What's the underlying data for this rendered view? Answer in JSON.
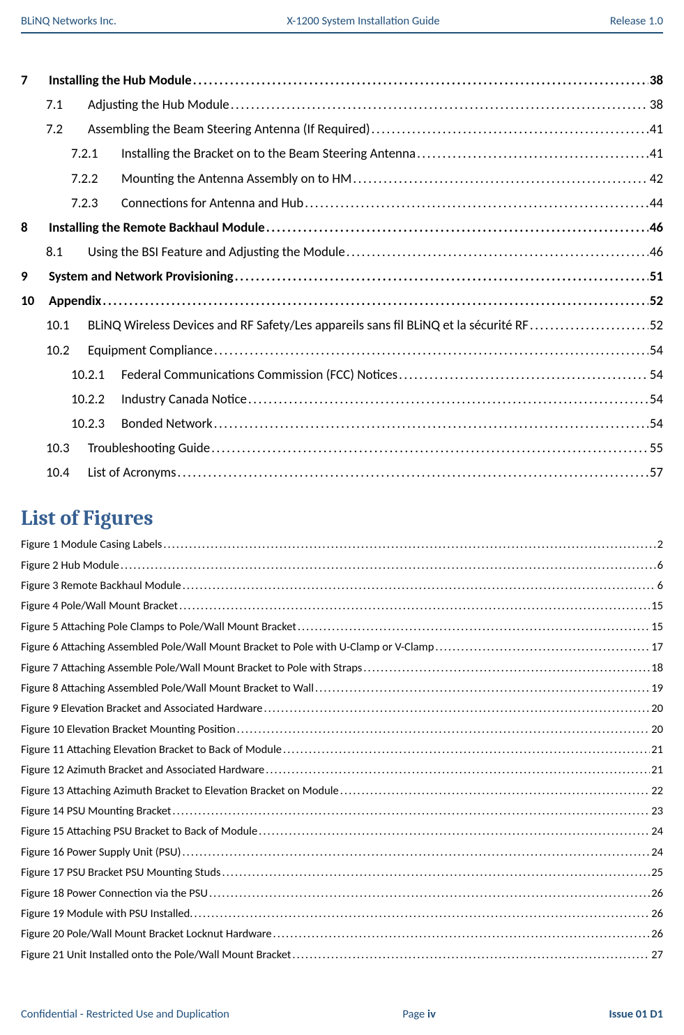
{
  "header": {
    "left": "BLiNQ Networks Inc.",
    "center": "X-1200 System Installation Guide",
    "right": "Release 1.0"
  },
  "toc": [
    {
      "num": "7",
      "label": "Installing the Hub Module",
      "page": "38",
      "bold": true,
      "indent": 0,
      "numw": "numcol-w1"
    },
    {
      "num": "7.1",
      "label": "Adjusting the Hub Module",
      "page": "38",
      "bold": false,
      "indent": 1,
      "numw": "numcol-w2"
    },
    {
      "num": "7.2",
      "label": "Assembling the Beam Steering Antenna (If Required)",
      "page": "41",
      "bold": false,
      "indent": 1,
      "numw": "numcol-w2"
    },
    {
      "num": "7.2.1",
      "label": "Installing the Bracket on to the Beam Steering Antenna",
      "page": "41",
      "bold": false,
      "indent": 2,
      "numw": "numcol-w3"
    },
    {
      "num": "7.2.2",
      "label": "Mounting the Antenna Assembly on to HM",
      "page": "42",
      "bold": false,
      "indent": 2,
      "numw": "numcol-w3"
    },
    {
      "num": "7.2.3",
      "label": "Connections for Antenna and Hub",
      "page": "44",
      "bold": false,
      "indent": 2,
      "numw": "numcol-w3"
    },
    {
      "num": "8",
      "label": "Installing the Remote Backhaul Module",
      "page": "46",
      "bold": true,
      "indent": 0,
      "numw": "numcol-w1"
    },
    {
      "num": "8.1",
      "label": "Using the BSI Feature and Adjusting the Module",
      "page": "46",
      "bold": false,
      "indent": 1,
      "numw": "numcol-w2"
    },
    {
      "num": "9",
      "label": "System and Network Provisioning",
      "page": "51",
      "bold": true,
      "indent": 0,
      "numw": "numcol-w1"
    },
    {
      "num": "10",
      "label": "Appendix",
      "page": "52",
      "bold": true,
      "indent": 0,
      "numw": "numcol-w1"
    },
    {
      "num": "10.1",
      "label": "BLiNQ Wireless Devices and RF Safety/Les appareils sans fil BLiNQ et la sécurité RF",
      "page": "52",
      "bold": false,
      "indent": 1,
      "numw": "numcol-w2"
    },
    {
      "num": "10.2",
      "label": "Equipment Compliance",
      "page": "54",
      "bold": false,
      "indent": 1,
      "numw": "numcol-w2"
    },
    {
      "num": "10.2.1",
      "label": "Federal Communications Commission (FCC) Notices",
      "page": "54",
      "bold": false,
      "indent": 2,
      "numw": "numcol-w3"
    },
    {
      "num": "10.2.2",
      "label": "Industry Canada Notice",
      "page": "54",
      "bold": false,
      "indent": 2,
      "numw": "numcol-w3"
    },
    {
      "num": "10.2.3",
      "label": "Bonded Network",
      "page": "54",
      "bold": false,
      "indent": 2,
      "numw": "numcol-w3"
    },
    {
      "num": "10.3",
      "label": "Troubleshooting Guide",
      "page": "55",
      "bold": false,
      "indent": 1,
      "numw": "numcol-w2"
    },
    {
      "num": "10.4",
      "label": "List of Acronyms",
      "page": "57",
      "bold": false,
      "indent": 1,
      "numw": "numcol-w2"
    }
  ],
  "lof_title": "List of Figures",
  "lof": [
    {
      "prefix": "Figure 1   Module Casing Labels",
      "page": "2"
    },
    {
      "prefix": "Figure 2   Hub Module",
      "page": "6"
    },
    {
      "prefix": "Figure 3   Remote Backhaul Module",
      "page": "6"
    },
    {
      "prefix": "Figure 4   Pole/Wall Mount Bracket",
      "page": "15"
    },
    {
      "prefix": "Figure 5   Attaching Pole Clamps to Pole/Wall Mount Bracket",
      "page": "15"
    },
    {
      "prefix": "Figure 6   Attaching Assembled Pole/Wall Mount Bracket to Pole with U-Clamp or V-Clamp",
      "page": "17"
    },
    {
      "prefix": "Figure 7   Attaching Assemble Pole/Wall Mount Bracket to Pole with Straps",
      "page": "18"
    },
    {
      "prefix": "Figure 8   Attaching Assembled Pole/Wall Mount Bracket to Wall",
      "page": "19"
    },
    {
      "prefix": "Figure 9   Elevation Bracket and Associated Hardware",
      "page": "20"
    },
    {
      "prefix": "Figure 10   Elevation Bracket Mounting Position",
      "page": "20"
    },
    {
      "prefix": "Figure 11   Attaching Elevation Bracket to Back of Module",
      "page": "21"
    },
    {
      "prefix": "Figure 12   Azimuth Bracket and Associated Hardware",
      "page": "21"
    },
    {
      "prefix": "Figure 13   Attaching Azimuth Bracket to Elevation Bracket on Module",
      "page": "22"
    },
    {
      "prefix": "Figure 14   PSU Mounting Bracket",
      "page": "23"
    },
    {
      "prefix": "Figure 15   Attaching PSU Bracket to Back of Module",
      "page": "24"
    },
    {
      "prefix": "Figure 16   Power Supply Unit (PSU)",
      "page": "24"
    },
    {
      "prefix": "Figure 17   PSU Bracket PSU Mounting Studs",
      "page": "25"
    },
    {
      "prefix": "Figure 18   Power Connection via the PSU",
      "page": "26"
    },
    {
      "prefix": "Figure 19   Module with PSU Installed.",
      "page": "26"
    },
    {
      "prefix": "Figure 20   Pole/Wall Mount Bracket Locknut Hardware",
      "page": "26"
    },
    {
      "prefix": "Figure 21   Unit Installed onto the Pole/Wall Mount Bracket",
      "page": "27"
    }
  ],
  "footer": {
    "left": "Confidential - Restricted Use and Duplication",
    "center_prefix": "Page ",
    "center_num": "iv",
    "right": "Issue 01 D1"
  },
  "dots": "....................................................................................................................................................................................................................................................................................................."
}
